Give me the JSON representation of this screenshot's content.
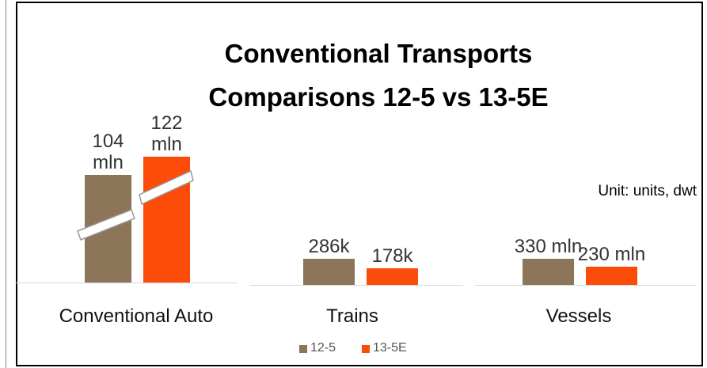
{
  "chart_data": {
    "type": "bar",
    "title": "Conventional Transports Comparisons 12-5 vs 13-5E",
    "annotation": "Unit: units, dwt",
    "categories": [
      "Conventional Auto",
      "Trains",
      "Vessels"
    ],
    "series": [
      {
        "name": "12-5",
        "color": "#8c7558",
        "values": [
          104000000,
          286000,
          330000000
        ],
        "value_labels": [
          "104 mln",
          "286k",
          "330 mln"
        ]
      },
      {
        "name": "13-5E",
        "color": "#fc4c0a",
        "values": [
          122000000,
          178000,
          230000000
        ],
        "value_labels": [
          "122 mln",
          "178k",
          "230 mln"
        ]
      }
    ],
    "legend": "bottom"
  }
}
